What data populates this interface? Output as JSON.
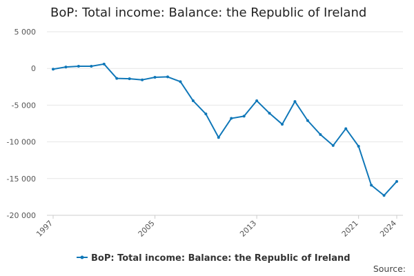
{
  "title": "BoP: Total income: Balance: the Republic of Ireland",
  "source_label": "Source:",
  "colors": {
    "series": "#0f77b8",
    "grid": "#e6e6e6",
    "axis": "#cccccc"
  },
  "chart_data": {
    "type": "line",
    "title": "BoP: Total income: Balance: the Republic of Ireland",
    "xlabel": "",
    "ylabel": "",
    "x_tick_labels": [
      "1997",
      "2005",
      "2013",
      "2021",
      "2024"
    ],
    "y_tick_labels": [
      "5 000",
      "0",
      "-5 000",
      "-10 000",
      "-15 000",
      "-20 000"
    ],
    "y_ticks": [
      5000,
      0,
      -5000,
      -10000,
      -15000,
      -20000
    ],
    "ylim": [
      -20000,
      5000
    ],
    "xlim": [
      1997,
      2024
    ],
    "grid": true,
    "legend_position": "bottom",
    "series": [
      {
        "name": "BoP: Total income: Balance: the Republic of Ireland",
        "x": [
          1997,
          1998,
          1999,
          2000,
          2001,
          2002,
          2003,
          2004,
          2005,
          2006,
          2007,
          2008,
          2009,
          2010,
          2011,
          2012,
          2013,
          2014,
          2015,
          2016,
          2017,
          2018,
          2019,
          2020,
          2021,
          2022,
          2023,
          2024
        ],
        "values": [
          -100,
          200,
          300,
          300,
          600,
          -1350,
          -1400,
          -1550,
          -1200,
          -1150,
          -1800,
          -4400,
          -6200,
          -9400,
          -6800,
          -6500,
          -4400,
          -6100,
          -7600,
          -4500,
          -7100,
          -9000,
          -10500,
          -8200,
          -10600,
          -15900,
          -17300,
          -15400
        ]
      }
    ]
  }
}
